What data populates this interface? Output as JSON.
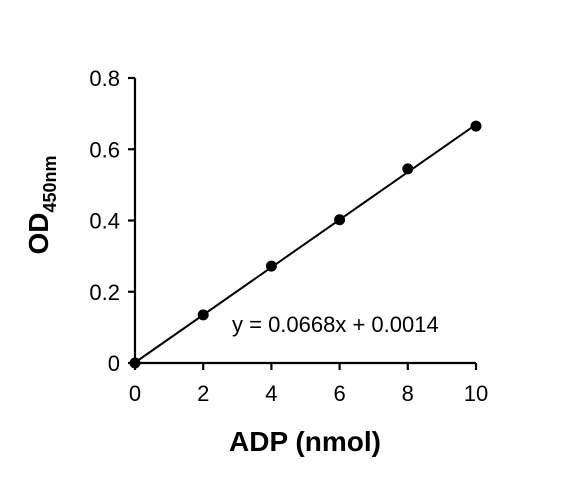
{
  "chart_data": {
    "type": "scatter",
    "xlabel": "ADP (nmol)",
    "ylabel_main": "OD",
    "ylabel_sub": "450nm",
    "xlim": [
      0,
      10
    ],
    "ylim": [
      0,
      0.8
    ],
    "x_ticks": [
      0,
      2,
      4,
      6,
      8,
      10
    ],
    "x_tick_labels": [
      "0",
      "2",
      "4",
      "6",
      "8",
      "10"
    ],
    "y_ticks": [
      0,
      0.2,
      0.4,
      0.6,
      0.8
    ],
    "y_tick_labels": [
      "0",
      "0.2",
      "0.4",
      "0.6",
      "0.8"
    ],
    "grid": false,
    "series": [
      {
        "x": [
          0,
          2,
          4,
          6,
          8,
          10
        ],
        "y": [
          0,
          0.135,
          0.272,
          0.402,
          0.545,
          0.665
        ]
      }
    ],
    "trendline": {
      "slope": 0.0668,
      "intercept": 0.0014,
      "label": "y = 0.0668x + 0.0014"
    },
    "colors": {
      "axis": "#000000",
      "marker": "#000000",
      "line": "#000000"
    }
  }
}
